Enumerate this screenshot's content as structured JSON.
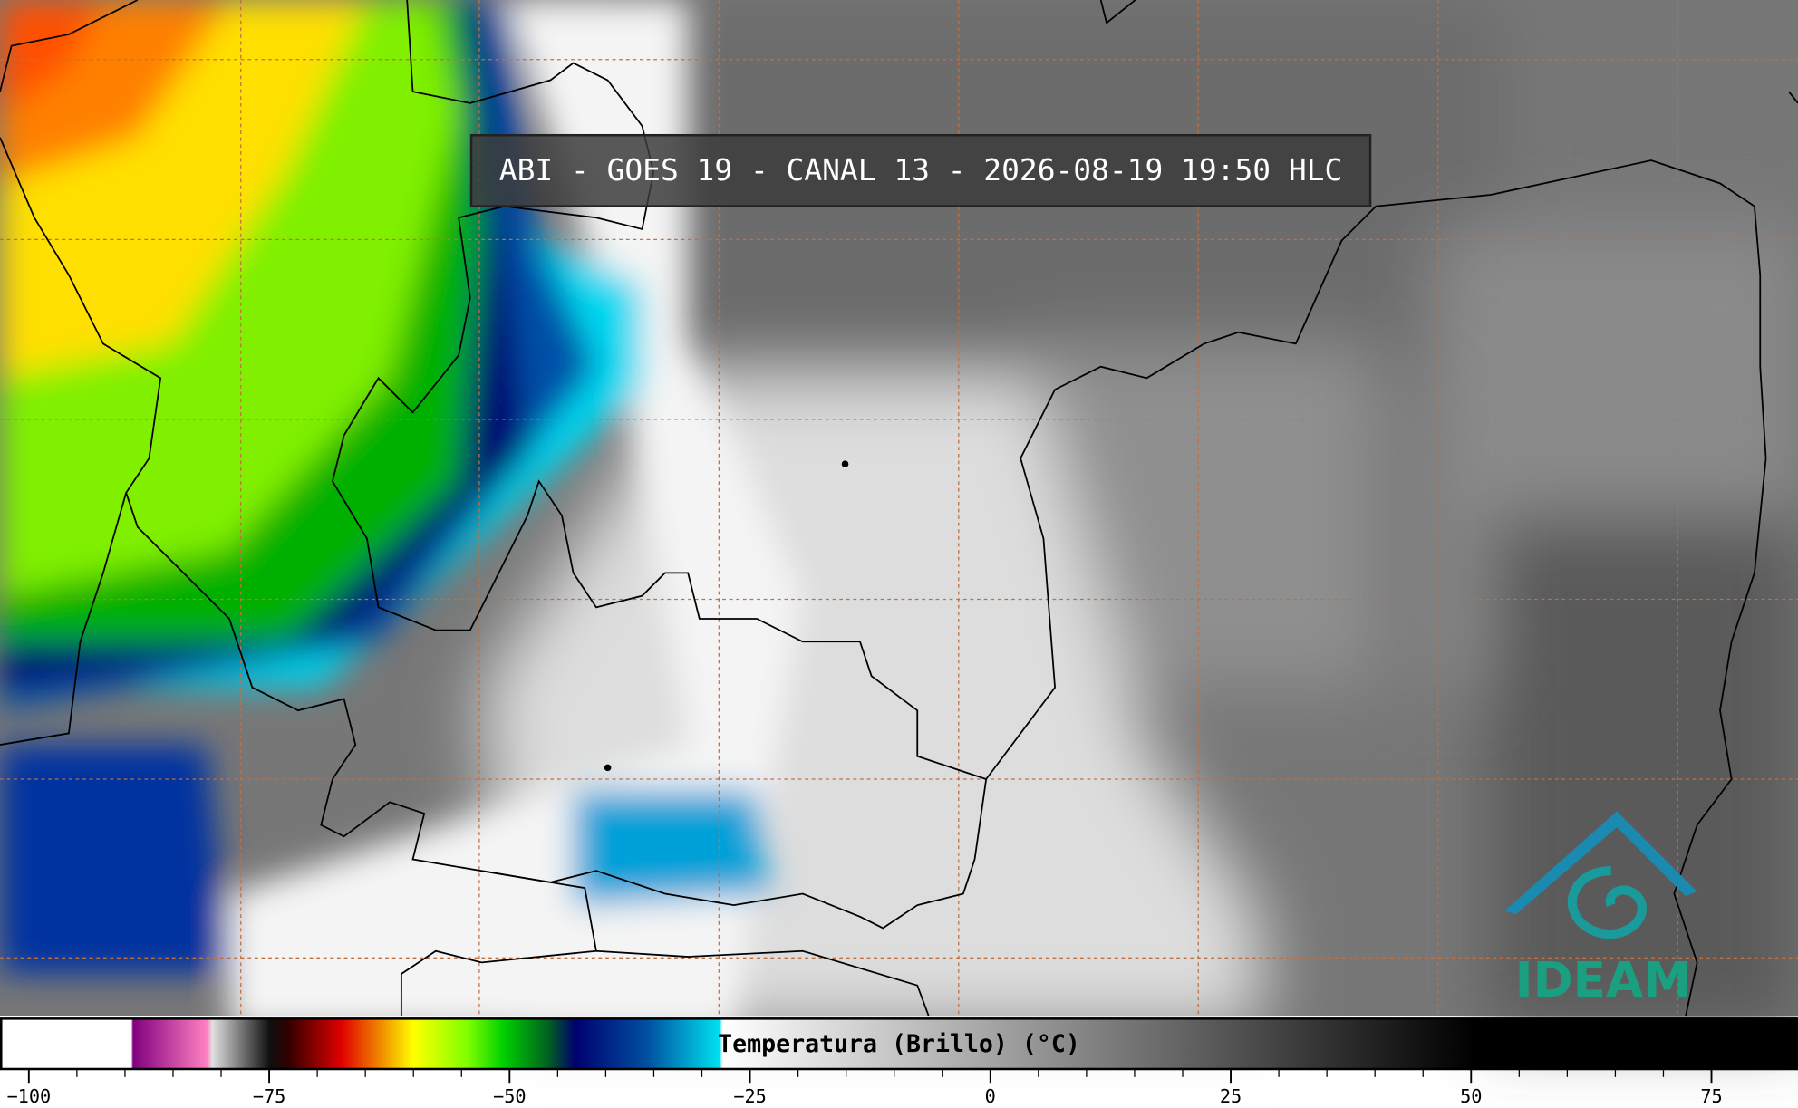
{
  "title": "ABI - GOES 19 - CANAL 13 - 2026-08-19 19:50 HLC",
  "colorbar": {
    "label": "Temperatura (Brillo) (°C)",
    "range": [
      -103,
      84
    ],
    "ticks": [
      {
        "value": -100,
        "label": "−100"
      },
      {
        "value": -75,
        "label": "−75"
      },
      {
        "value": -50,
        "label": "−50"
      },
      {
        "value": -25,
        "label": "−25"
      },
      0,
      25,
      50,
      75
    ]
  },
  "logo": "IDEAM"
}
